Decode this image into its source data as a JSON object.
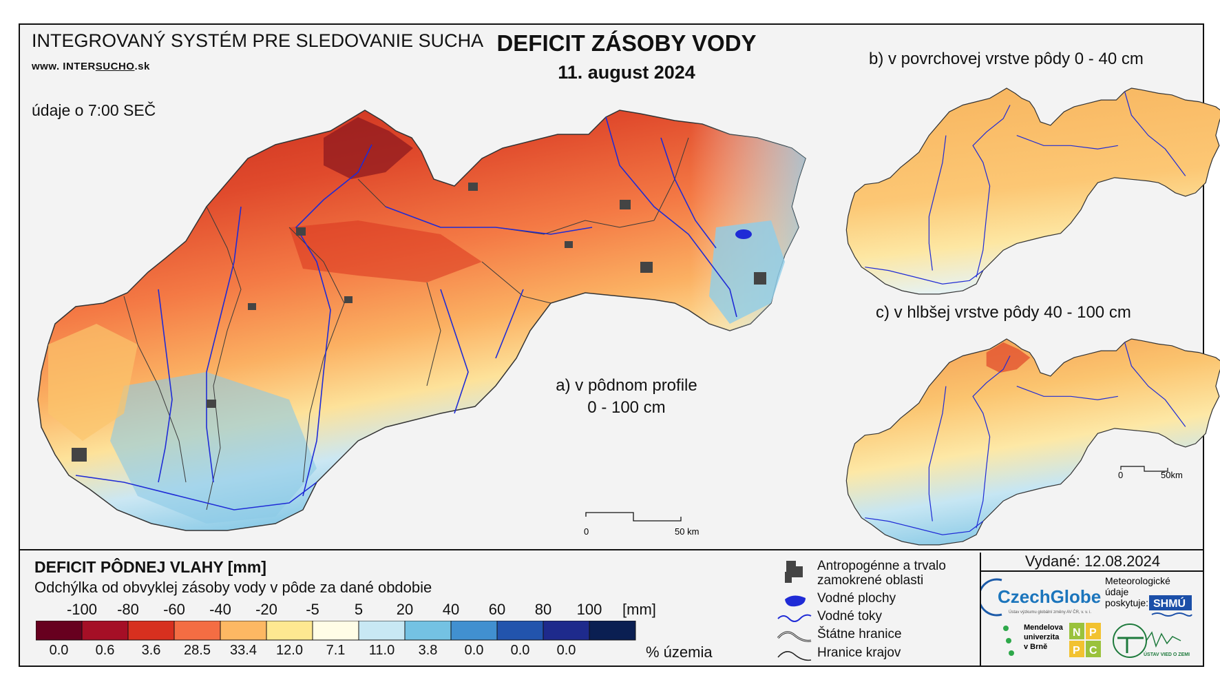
{
  "header": {
    "system_title": "INTEGROVANÝ SYSTÉM PRE SLEDOVANIE SUCHA",
    "website_prefix": "www. INTER",
    "website_highlight": "SUCHO",
    "website_suffix": ".sk",
    "time_note": "údaje o 7:00 SEČ",
    "main_title": "DEFICIT ZÁSOBY VODY",
    "main_date": "11. august 2024"
  },
  "maps": {
    "a_label_line1": "a) v pôdnom profile",
    "a_label_line2": "0 - 100 cm",
    "b_label": "b) v povrchovej vrstve pôdy 0 - 40 cm",
    "c_label": "c) v hlbšej vrstve pôdy 40 - 100 cm",
    "scale_main_start": "0",
    "scale_main_end": "50 km",
    "scale_small_start": "0",
    "scale_small_end": "50km"
  },
  "legend": {
    "title": "DEFICIT PÔDNEJ VLAHY [mm]",
    "subtitle": "Odchýlka od obvyklej zásoby vody v pôde za dané obdobie",
    "unit": "[mm]",
    "percent_label": "% územia",
    "ticks": [
      "-100",
      "-80",
      "-60",
      "-40",
      "-20",
      "-5",
      "5",
      "20",
      "40",
      "60",
      "80",
      "100"
    ],
    "classes": [
      {
        "color": "#67001f",
        "percent": "0.0"
      },
      {
        "color": "#a50f26",
        "percent": "0.6"
      },
      {
        "color": "#d7301f",
        "percent": "3.6"
      },
      {
        "color": "#f46d43",
        "percent": "28.5"
      },
      {
        "color": "#fdb863",
        "percent": "33.4"
      },
      {
        "color": "#fee891",
        "percent": "12.0"
      },
      {
        "color": "#fffde6",
        "percent": "7.1"
      },
      {
        "color": "#c8e8f4",
        "percent": "11.0"
      },
      {
        "color": "#74c2e3",
        "percent": "3.8"
      },
      {
        "color": "#4190d0",
        "percent": "0.0"
      },
      {
        "color": "#2254ad",
        "percent": "0.0"
      },
      {
        "color": "#1e2a8c",
        "percent": "0.0"
      },
      {
        "color": "#0a1f52",
        "percent": ""
      }
    ]
  },
  "symbols": {
    "urban": "Antropogénne a trvalo",
    "urban2": "zamokrené oblasti",
    "water_bodies": "Vodné plochy",
    "rivers": "Vodné toky",
    "state_border": "Štátne hranice",
    "region_border": "Hranice krajov"
  },
  "credits": {
    "issued": "Vydané: 12.08.2024",
    "czechglobe": "CzechGlobe",
    "czechglobe_sub": "Ústav výzkumu globální změny AV ČR, v. v. i.",
    "meteo_line1": "Meteorologické",
    "meteo_line2": "údaje",
    "meteo_line3": "poskytuje:",
    "shmu": "SHMÚ",
    "mendel_line1": "Mendelova",
    "mendel_line2": "univerzita",
    "mendel_line3": "v Brně",
    "nppc": [
      "N",
      "P",
      "P",
      "C"
    ],
    "ustav": "ÚSTAV VIED O ZEMI"
  }
}
